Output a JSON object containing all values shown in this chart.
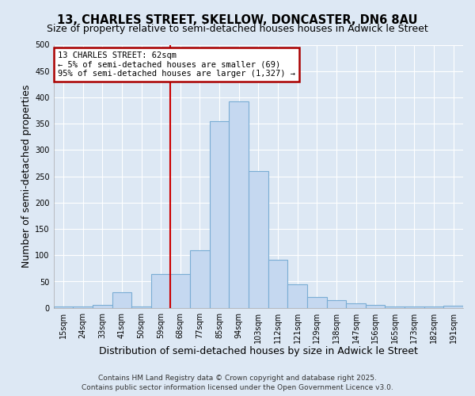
{
  "title": "13, CHARLES STREET, SKELLOW, DONCASTER, DN6 8AU",
  "subtitle": "Size of property relative to semi-detached houses houses in Adwick le Street",
  "xlabel": "Distribution of semi-detached houses by size in Adwick le Street",
  "ylabel": "Number of semi-detached properties",
  "categories": [
    "15sqm",
    "24sqm",
    "33sqm",
    "41sqm",
    "50sqm",
    "59sqm",
    "68sqm",
    "77sqm",
    "85sqm",
    "94sqm",
    "103sqm",
    "112sqm",
    "121sqm",
    "129sqm",
    "138sqm",
    "147sqm",
    "156sqm",
    "165sqm",
    "173sqm",
    "182sqm",
    "191sqm"
  ],
  "values": [
    2,
    2,
    5,
    30,
    2,
    65,
    65,
    110,
    355,
    393,
    260,
    92,
    44,
    20,
    14,
    8,
    5,
    2,
    2,
    2,
    4
  ],
  "bar_color": "#c5d8f0",
  "bar_edge_color": "#7aadd4",
  "vline_x": 5.5,
  "vline_color": "#cc0000",
  "ylim": [
    0,
    500
  ],
  "yticks": [
    0,
    50,
    100,
    150,
    200,
    250,
    300,
    350,
    400,
    450,
    500
  ],
  "annotation_title": "13 CHARLES STREET: 62sqm",
  "annotation_line1": "← 5% of semi-detached houses are smaller (69)",
  "annotation_line2": "95% of semi-detached houses are larger (1,327) →",
  "annotation_box_color": "#ffffff",
  "annotation_box_edge": "#aa0000",
  "footer1": "Contains HM Land Registry data © Crown copyright and database right 2025.",
  "footer2": "Contains public sector information licensed under the Open Government Licence v3.0.",
  "bg_color": "#dde8f4",
  "plot_bg_color": "#dde8f4",
  "grid_color": "#ffffff",
  "title_fontsize": 10.5,
  "subtitle_fontsize": 9,
  "label_fontsize": 9,
  "tick_fontsize": 7,
  "footer_fontsize": 6.5,
  "ann_fontsize": 7.5
}
